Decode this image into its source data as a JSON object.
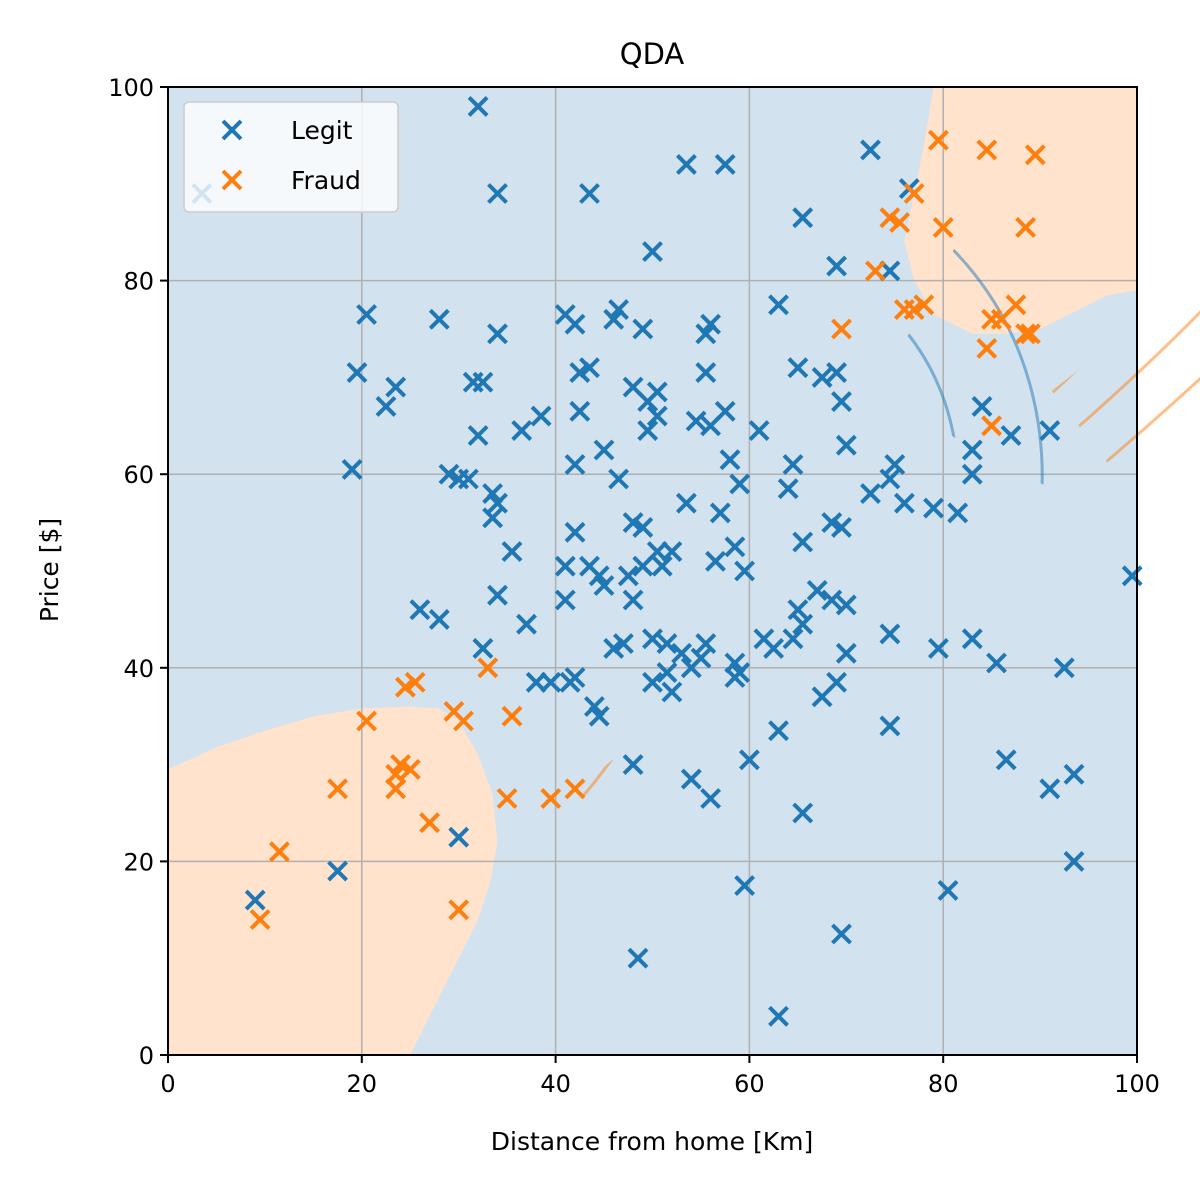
{
  "chart_data": {
    "type": "scatter",
    "title": "QDA",
    "xlabel": "Distance from home [Km]",
    "ylabel": "Price [$]",
    "xlim": [
      0,
      100
    ],
    "ylim": [
      0,
      100
    ],
    "xticks": [
      "0",
      "20",
      "40",
      "60",
      "80",
      "100"
    ],
    "yticks": [
      "0",
      "20",
      "40",
      "60",
      "80",
      "100"
    ],
    "grid": true,
    "legend_position": "top-left",
    "colors": {
      "legit": "#1f77b4",
      "fraud": "#ff7f0e",
      "legit_region": "#d2e2ee",
      "fraud_region": "#ffe3cd"
    },
    "series": [
      {
        "name": "Legit",
        "points": [
          [
            3.5,
            89
          ],
          [
            32,
            98
          ],
          [
            34,
            89
          ],
          [
            43.5,
            89
          ],
          [
            53.5,
            92
          ],
          [
            57.5,
            92
          ],
          [
            72.5,
            93.5
          ],
          [
            50,
            83
          ],
          [
            65.5,
            86.5
          ],
          [
            69,
            81.5
          ],
          [
            76.5,
            89.5
          ],
          [
            74.5,
            81
          ],
          [
            20.5,
            76.5
          ],
          [
            28,
            76
          ],
          [
            41,
            76.5
          ],
          [
            42,
            75.5
          ],
          [
            34,
            74.5
          ],
          [
            46,
            76
          ],
          [
            46.5,
            77
          ],
          [
            49,
            75
          ],
          [
            56,
            75.5
          ],
          [
            55.5,
            74.5
          ],
          [
            63,
            77.5
          ],
          [
            19.5,
            70.5
          ],
          [
            22.5,
            67
          ],
          [
            23.5,
            69
          ],
          [
            31.5,
            69.5
          ],
          [
            32.5,
            69.5
          ],
          [
            42.5,
            70.5
          ],
          [
            43.5,
            71
          ],
          [
            48,
            69
          ],
          [
            49.5,
            67.5
          ],
          [
            50.5,
            68.5
          ],
          [
            55.5,
            70.5
          ],
          [
            65,
            71
          ],
          [
            67.5,
            70
          ],
          [
            69,
            70.5
          ],
          [
            69.5,
            67.5
          ],
          [
            42.5,
            66.5
          ],
          [
            38.5,
            66
          ],
          [
            36.5,
            64.5
          ],
          [
            32,
            64
          ],
          [
            49.5,
            64.5
          ],
          [
            50.5,
            66
          ],
          [
            54.5,
            65.5
          ],
          [
            56,
            65
          ],
          [
            57.5,
            66.5
          ],
          [
            61,
            64.5
          ],
          [
            70,
            63
          ],
          [
            45,
            62.5
          ],
          [
            42,
            61
          ],
          [
            19,
            60.5
          ],
          [
            29,
            60
          ],
          [
            30,
            59.5
          ],
          [
            31,
            59.5
          ],
          [
            33.5,
            58
          ],
          [
            34,
            57
          ],
          [
            33.5,
            55.5
          ],
          [
            46.5,
            59.5
          ],
          [
            58,
            61.5
          ],
          [
            59,
            59
          ],
          [
            64.5,
            61
          ],
          [
            64,
            58.5
          ],
          [
            72.5,
            58
          ],
          [
            75,
            61
          ],
          [
            74.5,
            59.5
          ],
          [
            76,
            57
          ],
          [
            79,
            56.5
          ],
          [
            81.5,
            56
          ],
          [
            83,
            60
          ],
          [
            83,
            62.5
          ],
          [
            84,
            67
          ],
          [
            87,
            64
          ],
          [
            91,
            64.5
          ],
          [
            53.5,
            57
          ],
          [
            57,
            56
          ],
          [
            42,
            54
          ],
          [
            48,
            55
          ],
          [
            49,
            54.5
          ],
          [
            50.5,
            52
          ],
          [
            52,
            52
          ],
          [
            49,
            50.5
          ],
          [
            51,
            50.5
          ],
          [
            56.5,
            51
          ],
          [
            58.5,
            52.5
          ],
          [
            59.5,
            50
          ],
          [
            65.5,
            53
          ],
          [
            68.5,
            55
          ],
          [
            69.5,
            54.5
          ],
          [
            35.5,
            52
          ],
          [
            41,
            50.5
          ],
          [
            43.5,
            50.5
          ],
          [
            44.5,
            49.5
          ],
          [
            47.5,
            49.5
          ],
          [
            45,
            48.5
          ],
          [
            41,
            47
          ],
          [
            48,
            47
          ],
          [
            34,
            47.5
          ],
          [
            26,
            46
          ],
          [
            28,
            45
          ],
          [
            37,
            44.5
          ],
          [
            46,
            42
          ],
          [
            47,
            42.5
          ],
          [
            50,
            43
          ],
          [
            51.5,
            42.5
          ],
          [
            53,
            41.5
          ],
          [
            55.5,
            42.5
          ],
          [
            58.5,
            40.5
          ],
          [
            59,
            39.5
          ],
          [
            61.5,
            43
          ],
          [
            62.5,
            42
          ],
          [
            64.5,
            43
          ],
          [
            65,
            46
          ],
          [
            65.5,
            44.5
          ],
          [
            67,
            48
          ],
          [
            68.5,
            47
          ],
          [
            70,
            46.5
          ],
          [
            70,
            41.5
          ],
          [
            74.5,
            43.5
          ],
          [
            79.5,
            42
          ],
          [
            83,
            43
          ],
          [
            85.5,
            40.5
          ],
          [
            92.5,
            40
          ],
          [
            99.5,
            49.5
          ],
          [
            32.5,
            42
          ],
          [
            38,
            38.5
          ],
          [
            39.5,
            38.5
          ],
          [
            41.5,
            38.5
          ],
          [
            42,
            39
          ],
          [
            50,
            38.5
          ],
          [
            51.5,
            39.5
          ],
          [
            52,
            37.5
          ],
          [
            54,
            40
          ],
          [
            55,
            41
          ],
          [
            58.5,
            39
          ],
          [
            67.5,
            37
          ],
          [
            69,
            38.5
          ],
          [
            44,
            36
          ],
          [
            44.5,
            35
          ],
          [
            48,
            30
          ],
          [
            54,
            28.5
          ],
          [
            56,
            26.5
          ],
          [
            60,
            30.5
          ],
          [
            63,
            33.5
          ],
          [
            74.5,
            34
          ],
          [
            86.5,
            30.5
          ],
          [
            91,
            27.5
          ],
          [
            93.5,
            29
          ],
          [
            93.5,
            20
          ],
          [
            17.5,
            19
          ],
          [
            9,
            16
          ],
          [
            30,
            22.5
          ],
          [
            59.5,
            17.5
          ],
          [
            65.5,
            25
          ],
          [
            69.5,
            12.5
          ],
          [
            80.5,
            17
          ],
          [
            48.5,
            10
          ],
          [
            63,
            4
          ]
        ]
      },
      {
        "name": "Fraud",
        "points": [
          [
            79.5,
            94.5
          ],
          [
            84.5,
            93.5
          ],
          [
            89.5,
            93
          ],
          [
            77,
            89
          ],
          [
            74.5,
            86.5
          ],
          [
            75.5,
            86
          ],
          [
            80,
            85.5
          ],
          [
            88.5,
            85.5
          ],
          [
            73,
            81
          ],
          [
            76,
            77
          ],
          [
            77,
            77
          ],
          [
            78,
            77.5
          ],
          [
            85,
            76
          ],
          [
            86,
            76
          ],
          [
            87.5,
            77.5
          ],
          [
            88.5,
            74.5
          ],
          [
            89,
            74.5
          ],
          [
            84.5,
            73
          ],
          [
            69.5,
            75
          ],
          [
            85,
            65
          ],
          [
            33,
            40
          ],
          [
            24.5,
            38
          ],
          [
            25.5,
            38.5
          ],
          [
            20.5,
            34.5
          ],
          [
            29.5,
            35.5
          ],
          [
            30.5,
            34.5
          ],
          [
            35.5,
            35
          ],
          [
            23.5,
            29
          ],
          [
            24,
            30
          ],
          [
            25,
            29.5
          ],
          [
            23.5,
            27.5
          ],
          [
            17.5,
            27.5
          ],
          [
            35,
            26.5
          ],
          [
            39.5,
            26.5
          ],
          [
            42,
            27.5
          ],
          [
            27,
            24
          ],
          [
            11.5,
            21
          ],
          [
            9.5,
            14
          ],
          [
            30,
            15
          ]
        ]
      }
    ],
    "contours": {
      "legit": {
        "center": [
          57,
          57
        ],
        "axis_a": 11,
        "axis_b": 10,
        "angle": 62,
        "levels": [
          1,
          1.55,
          2.4,
          3.25
        ]
      },
      "fraud_upper": {
        "center": [
          72,
          65
        ],
        "axis_a": 28,
        "axis_b": 6,
        "angle": 38,
        "levels": [
          1,
          1.65,
          2.35,
          3.1
        ]
      },
      "fraud_lower": {
        "center": [
          23,
          24
        ],
        "axis_a": 13,
        "axis_b": 4.5,
        "angle": 38,
        "levels": [
          1,
          1.75,
          2.6
        ]
      }
    }
  }
}
